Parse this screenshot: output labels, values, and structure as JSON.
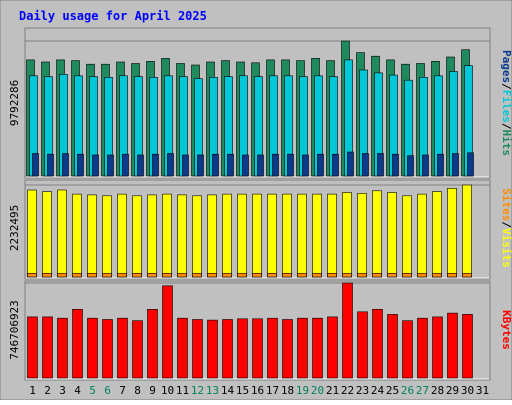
{
  "chart_data": {
    "type": "bar",
    "title": "Daily usage for April 2025",
    "days": [
      "1",
      "2",
      "3",
      "4",
      "5",
      "6",
      "7",
      "8",
      "9",
      "10",
      "11",
      "12",
      "13",
      "14",
      "15",
      "16",
      "17",
      "18",
      "19",
      "20",
      "21",
      "22",
      "23",
      "24",
      "25",
      "26",
      "27",
      "28",
      "29",
      "30",
      "31"
    ],
    "weekend_days": [
      "5",
      "6",
      "12",
      "13",
      "19",
      "20",
      "26",
      "27"
    ],
    "panels": [
      {
        "id": "hits_files_pages",
        "max_label": "9792286",
        "right_label": [
          "Pages",
          "Files",
          "Hits"
        ],
        "series": [
          {
            "name": "Hits",
            "color": "#1f8a5e",
            "values": [
              8000000,
              7850000,
              8000000,
              7950000,
              7700000,
              7700000,
              7850000,
              7750000,
              7900000,
              8100000,
              7750000,
              7650000,
              7850000,
              7950000,
              7850000,
              7800000,
              8000000,
              8000000,
              7950000,
              8100000,
              7950000,
              9300000,
              8500000,
              8250000,
              8000000,
              7700000,
              7750000,
              7900000,
              8200000,
              8700000,
              null
            ]
          },
          {
            "name": "Files",
            "color": "#00c8d8",
            "values": [
              6900000,
              6850000,
              7000000,
              6900000,
              6850000,
              6800000,
              6900000,
              6850000,
              6800000,
              6900000,
              6850000,
              6700000,
              6800000,
              6850000,
              6900000,
              6850000,
              6900000,
              6900000,
              6850000,
              6900000,
              6850000,
              8000000,
              7300000,
              7100000,
              6950000,
              6600000,
              6800000,
              6900000,
              7200000,
              7600000,
              null
            ]
          },
          {
            "name": "Pages",
            "color": "#0a3a8c",
            "values": [
              1550000,
              1500000,
              1550000,
              1500000,
              1450000,
              1450000,
              1500000,
              1450000,
              1500000,
              1550000,
              1450000,
              1450000,
              1500000,
              1500000,
              1450000,
              1450000,
              1500000,
              1500000,
              1450000,
              1500000,
              1500000,
              1650000,
              1550000,
              1550000,
              1500000,
              1400000,
              1450000,
              1500000,
              1550000,
              1600000,
              null
            ]
          }
        ]
      },
      {
        "id": "visits_sites",
        "max_label": "2232495",
        "right_label": [
          "Sites",
          "Visits"
        ],
        "series": [
          {
            "name": "Visits",
            "color": "#ffff00",
            "values": [
              2100000,
              2060000,
              2100000,
              2000000,
              1980000,
              1960000,
              2000000,
              1960000,
              1980000,
              2000000,
              1980000,
              1960000,
              1980000,
              2000000,
              2000000,
              2000000,
              2000000,
              2000000,
              2000000,
              2000000,
              2000000,
              2040000,
              2020000,
              2080000,
              2040000,
              1960000,
              2000000,
              2060000,
              2140000,
              2220000,
              null
            ]
          },
          {
            "name": "Sites",
            "color": "#ff8c00",
            "values": [
              90000,
              90000,
              90000,
              90000,
              90000,
              90000,
              90000,
              90000,
              90000,
              90000,
              90000,
              90000,
              90000,
              90000,
              90000,
              90000,
              90000,
              90000,
              90000,
              90000,
              90000,
              90000,
              90000,
              90000,
              90000,
              90000,
              90000,
              90000,
              90000,
              90000,
              null
            ]
          }
        ]
      },
      {
        "id": "kbytes",
        "max_label": "746706923",
        "right_label": [
          "KBytes"
        ],
        "series": [
          {
            "name": "KBytes",
            "color": "#ff0000",
            "values": [
              480000000,
              480000000,
              470000000,
              540000000,
              470000000,
              460000000,
              470000000,
              450000000,
              540000000,
              725000000,
              470000000,
              460000000,
              455000000,
              460000000,
              465000000,
              465000000,
              470000000,
              460000000,
              470000000,
              470000000,
              480000000,
              746706923,
              520000000,
              540000000,
              500000000,
              450000000,
              470000000,
              480000000,
              510000000,
              500000000,
              null
            ]
          }
        ]
      }
    ]
  },
  "colors": {
    "background": "#c0c0c0",
    "plot_background": "#c0c0c0",
    "title": "#0000ff",
    "day_label": "#000000",
    "weekend_label": "#00805f",
    "border_dark": "#808080",
    "border_light": "#ffffff",
    "slash": "#000000"
  }
}
